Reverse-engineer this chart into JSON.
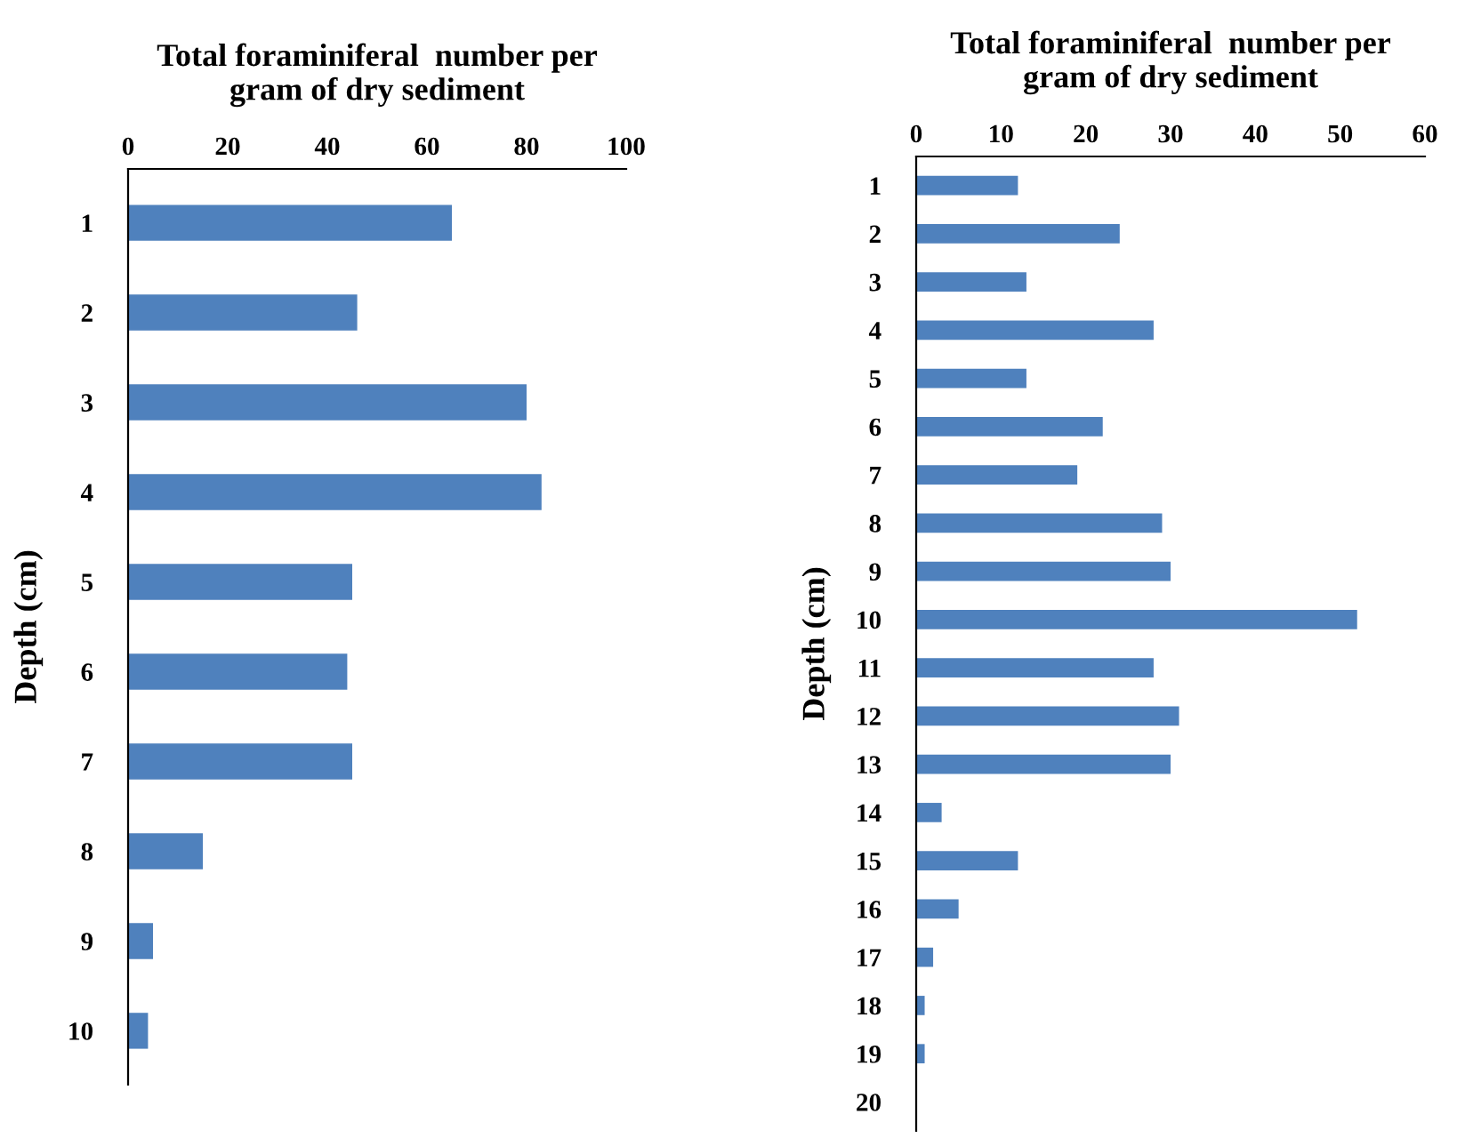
{
  "chart_data": [
    {
      "type": "bar",
      "orientation": "horizontal",
      "title": "Total foraminiferal  number per\ngram of dry sediment",
      "ylabel": "Depth (cm)",
      "categories": [
        "1",
        "2",
        "3",
        "4",
        "5",
        "6",
        "7",
        "8",
        "9",
        "10"
      ],
      "series": [
        {
          "color": "#4f81bd",
          "values": [
            65,
            46,
            80,
            83,
            45,
            44,
            45,
            15,
            5,
            4
          ]
        }
      ],
      "xlim": [
        0,
        100
      ],
      "xticks": [
        0,
        20,
        40,
        60,
        80,
        100
      ],
      "grid": false,
      "legend": false
    },
    {
      "type": "bar",
      "orientation": "horizontal",
      "title": "Total foraminiferal  number per\ngram of dry sediment",
      "ylabel": "Depth (cm)",
      "categories": [
        "1",
        "2",
        "3",
        "4",
        "5",
        "6",
        "7",
        "8",
        "9",
        "10",
        "11",
        "12",
        "13",
        "14",
        "15",
        "16",
        "17",
        "18",
        "19",
        "20"
      ],
      "series": [
        {
          "color": "#4f81bd",
          "values": [
            12,
            24,
            13,
            28,
            13,
            22,
            19,
            29,
            30,
            52,
            28,
            31,
            30,
            3,
            12,
            5,
            2,
            1,
            1,
            0
          ]
        }
      ],
      "xlim": [
        0,
        60
      ],
      "xticks": [
        0,
        10,
        20,
        30,
        40,
        50,
        60
      ],
      "grid": false,
      "legend": false
    }
  ]
}
